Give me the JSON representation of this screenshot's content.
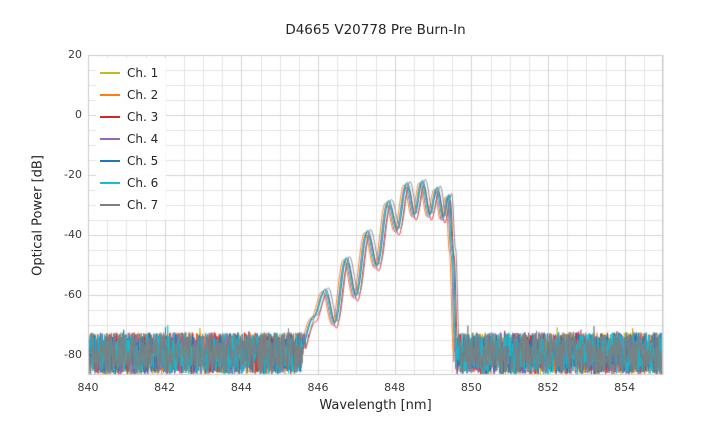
{
  "chart_data": {
    "type": "line",
    "title": "D4665 V20778 Pre Burn-In",
    "xlabel": "Wavelength [nm]",
    "ylabel": "Optical Power [dB]",
    "xlim": [
      840,
      855
    ],
    "ylim": [
      -86.7,
      20
    ],
    "xticks": [
      840,
      842,
      844,
      846,
      848,
      850,
      852,
      854
    ],
    "yticks": [
      20,
      0,
      -20,
      -40,
      -60,
      -80
    ],
    "grid": {
      "show": true,
      "minor_x_step_nm": 0.5,
      "minor_y_step_db": 5,
      "minor_color": "#e4e4e4",
      "major_color": "#d4d4d4",
      "frame_color": "#cccccc"
    },
    "legend": {
      "position": "upper-left"
    },
    "noise_floor_db": {
      "typical_max": -72,
      "typical_min": -86.5,
      "mean": -79
    },
    "signal_envelope_points_nm_db": [
      [
        845.55,
        -78
      ],
      [
        845.9,
        -67
      ],
      [
        846.2,
        -58
      ],
      [
        846.45,
        -69
      ],
      [
        846.75,
        -47.5
      ],
      [
        847.0,
        -60
      ],
      [
        847.3,
        -38.5
      ],
      [
        847.55,
        -50
      ],
      [
        847.85,
        -28.5
      ],
      [
        848.08,
        -38
      ],
      [
        848.33,
        -22.5
      ],
      [
        848.53,
        -33
      ],
      [
        848.73,
        -21.8
      ],
      [
        848.93,
        -33
      ],
      [
        849.12,
        -24
      ],
      [
        849.28,
        -34
      ],
      [
        849.42,
        -26.5
      ],
      [
        849.52,
        -45
      ],
      [
        849.62,
        -78
      ]
    ],
    "series": [
      {
        "name": "Ch. 1",
        "color": "#bcbd22",
        "x_offset_nm": -0.02,
        "y_offset_db": -0.5,
        "seed": 101
      },
      {
        "name": "Ch. 2",
        "color": "#ff7f0e",
        "x_offset_nm": -0.09,
        "y_offset_db": -0.8,
        "seed": 202
      },
      {
        "name": "Ch. 3",
        "color": "#d62728",
        "x_offset_nm": 0.03,
        "y_offset_db": -2.0,
        "seed": 303
      },
      {
        "name": "Ch. 4",
        "color": "#9467bd",
        "x_offset_nm": -0.05,
        "y_offset_db": -1.2,
        "seed": 404
      },
      {
        "name": "Ch. 5",
        "color": "#1f77b4",
        "x_offset_nm": 0.0,
        "y_offset_db": 0.0,
        "seed": 505
      },
      {
        "name": "Ch. 6",
        "color": "#17becf",
        "x_offset_nm": -0.03,
        "y_offset_db": -0.3,
        "seed": 606
      },
      {
        "name": "Ch. 7",
        "color": "#7f7f7f",
        "x_offset_nm": 0.07,
        "y_offset_db": 0.3,
        "seed": 707
      }
    ]
  }
}
